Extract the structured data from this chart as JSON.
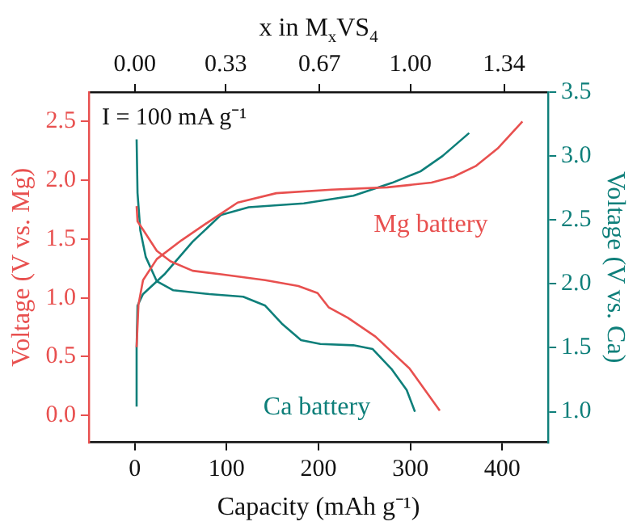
{
  "chart_data": {
    "type": "line",
    "xlabel": "Capacity (mAh g⁻¹)",
    "ylabel": "Voltage (V vs. Mg)",
    "y2label": "Voltage (V vs. Ca)",
    "x2label": "x in M$_{x}$VS$_{4}$",
    "annotations": [
      "I = 100 mA g⁻¹"
    ],
    "xlim": [
      -50,
      450
    ],
    "xticks": [
      0,
      100,
      200,
      300,
      400
    ],
    "x2lim": [
      -0.167,
      1.5
    ],
    "x2ticks": [
      {
        "value": 0,
        "label": "0.00"
      },
      0.33,
      0.67,
      {
        "value": 1,
        "label": "1.00"
      },
      1.34
    ],
    "ylim": [
      -0.23,
      2.75
    ],
    "yticks": [
      {
        "value": 0,
        "label": "0.0"
      },
      0.5,
      {
        "value": 1,
        "label": "1.0"
      },
      1.5,
      {
        "value": 2,
        "label": "2.0"
      },
      2.5
    ],
    "y2lim": [
      0.76,
      3.5
    ],
    "y2ticks": [
      {
        "value": 1,
        "label": "1.0"
      },
      1.5,
      {
        "value": 2,
        "label": "2.0"
      },
      2.5,
      {
        "value": 3,
        "label": "3.0"
      },
      3.5
    ],
    "legend": false,
    "grid": false,
    "marker": "none",
    "line_style": "solid",
    "series": [
      {
        "name": "Mg battery",
        "color": "#e8504f",
        "x": [
          2,
          4,
          9,
          24,
          51,
          81,
          112,
          154,
          214,
          275,
          323,
          347,
          371,
          395,
          422,
          null,
          2,
          3,
          9,
          24,
          39,
          63,
          94,
          142,
          178,
          199,
          211,
          232,
          262,
          299,
          332
        ],
        "values": [
          0.58,
          0.94,
          1.15,
          1.33,
          1.49,
          1.65,
          1.81,
          1.89,
          1.92,
          1.94,
          1.98,
          2.03,
          2.12,
          2.27,
          2.5,
          null,
          1.78,
          1.65,
          1.58,
          1.4,
          1.31,
          1.23,
          1.2,
          1.15,
          1.1,
          1.04,
          0.92,
          0.83,
          0.67,
          0.4,
          0.04
        ]
      },
      {
        "name": "Ca battery",
        "color": "#0e7f7a",
        "axis": "y2",
        "x": [
          2,
          2,
          3,
          9,
          33,
          63,
          94,
          124,
          184,
          238,
          280,
          311,
          335,
          364,
          null,
          2,
          3,
          6,
          12,
          24,
          42,
          81,
          118,
          142,
          160,
          181,
          202,
          238,
          259,
          280,
          296,
          305
        ],
        "values": [
          1.04,
          1.5,
          1.83,
          1.92,
          2.08,
          2.33,
          2.54,
          2.6,
          2.63,
          2.69,
          2.79,
          2.88,
          3.0,
          3.18,
          null,
          3.13,
          2.71,
          2.42,
          2.21,
          2.02,
          1.95,
          1.92,
          1.9,
          1.83,
          1.69,
          1.56,
          1.53,
          1.52,
          1.49,
          1.33,
          1.17,
          1.0
        ]
      }
    ]
  }
}
